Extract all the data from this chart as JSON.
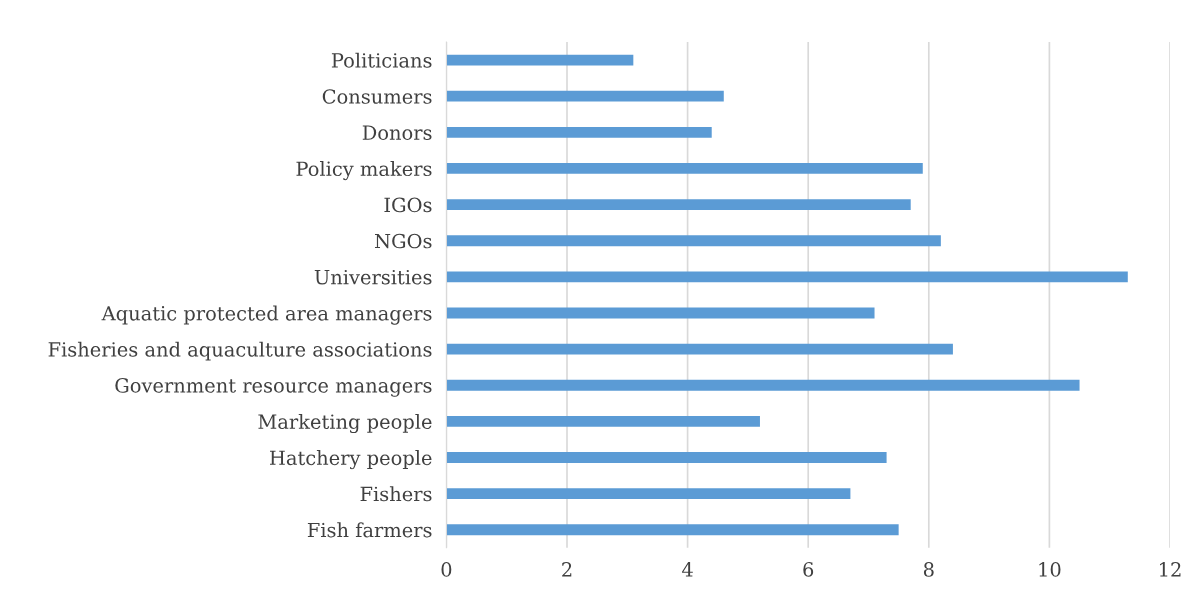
{
  "chart_data": {
    "type": "bar",
    "orientation": "horizontal",
    "categories": [
      "Politicians",
      "Consumers",
      "Donors",
      "Policy makers",
      "IGOs",
      "NGOs",
      "Universities",
      "Aquatic protected area managers",
      "Fisheries and aquaculture associations",
      "Government resource managers",
      "Marketing people",
      "Hatchery people",
      "Fishers",
      "Fish farmers"
    ],
    "values": [
      3.1,
      4.6,
      4.4,
      7.9,
      7.7,
      8.2,
      11.3,
      7.1,
      8.4,
      10.5,
      5.2,
      7.3,
      6.7,
      7.5
    ],
    "color": "#5b9bd5",
    "xlim": [
      0,
      12
    ],
    "xticks": [
      0,
      2,
      4,
      6,
      8,
      10,
      12
    ],
    "grid": "x",
    "legend": false
  }
}
